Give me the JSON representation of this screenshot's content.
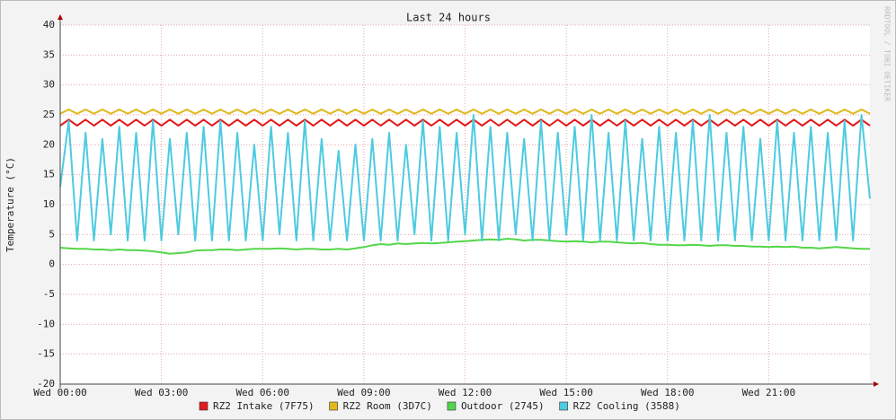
{
  "chart_data": {
    "type": "line",
    "title": "Last 24 hours",
    "y_label": "Temperature (°C)",
    "watermark": "RRDTOOL / TOBI OETIKER",
    "xlim": [
      0,
      24
    ],
    "ylim": [
      -20,
      40
    ],
    "yticks": [
      -20,
      -15,
      -10,
      -5,
      0,
      5,
      10,
      15,
      20,
      25,
      30,
      35,
      40
    ],
    "xticks": [
      {
        "value": 0,
        "label": "Wed 00:00"
      },
      {
        "value": 3,
        "label": "Wed 03:00"
      },
      {
        "value": 6,
        "label": "Wed 06:00"
      },
      {
        "value": 9,
        "label": "Wed 09:00"
      },
      {
        "value": 12,
        "label": "Wed 12:00"
      },
      {
        "value": 15,
        "label": "Wed 15:00"
      },
      {
        "value": 18,
        "label": "Wed 18:00"
      },
      {
        "value": 21,
        "label": "Wed 21:00"
      }
    ],
    "grid": true,
    "x": [
      0,
      0.25,
      0.5,
      0.75,
      1,
      1.25,
      1.5,
      1.75,
      2,
      2.25,
      2.5,
      2.75,
      3,
      3.25,
      3.5,
      3.75,
      4,
      4.25,
      4.5,
      4.75,
      5,
      5.25,
      5.5,
      5.75,
      6,
      6.25,
      6.5,
      6.75,
      7,
      7.25,
      7.5,
      7.75,
      8,
      8.25,
      8.5,
      8.75,
      9,
      9.25,
      9.5,
      9.75,
      10,
      10.25,
      10.5,
      10.75,
      11,
      11.25,
      11.5,
      11.75,
      12,
      12.25,
      12.5,
      12.75,
      13,
      13.25,
      13.5,
      13.75,
      14,
      14.25,
      14.5,
      14.75,
      15,
      15.25,
      15.5,
      15.75,
      16,
      16.25,
      16.5,
      16.75,
      17,
      17.25,
      17.5,
      17.75,
      18,
      18.25,
      18.5,
      18.75,
      19,
      19.25,
      19.5,
      19.75,
      20,
      20.25,
      20.5,
      20.75,
      21,
      21.25,
      21.5,
      21.75,
      22,
      22.25,
      22.5,
      22.75,
      23,
      23.25,
      23.5,
      23.75,
      24
    ],
    "series": [
      {
        "name": "RZ2 Intake (7F75)",
        "color": "#e31a1c",
        "values": [
          23.2,
          24.2,
          23.2,
          24.2,
          23.2,
          24.2,
          23.2,
          24.2,
          23.2,
          24.2,
          23.2,
          24.2,
          23.2,
          24.2,
          23.2,
          24.2,
          23.2,
          24.2,
          23.2,
          24.2,
          23.2,
          24.2,
          23.2,
          24.2,
          23.2,
          24.2,
          23.2,
          24.2,
          23.2,
          24.2,
          23.2,
          24.2,
          23.2,
          24.2,
          23.2,
          24.2,
          23.2,
          24.2,
          23.2,
          24.2,
          23.2,
          24.2,
          23.2,
          24.2,
          23.2,
          24.2,
          23.2,
          24.2,
          23.2,
          24.2,
          23.2,
          24.2,
          23.2,
          24.2,
          23.2,
          24.2,
          23.2,
          24.2,
          23.2,
          24.2,
          23.2,
          24.2,
          23.2,
          24.2,
          23.2,
          24.2,
          23.2,
          24.2,
          23.2,
          24.2,
          23.2,
          24.2,
          23.2,
          24.2,
          23.2,
          24.2,
          23.2,
          24.2,
          23.2,
          24.2,
          23.2,
          24.2,
          23.2,
          24.2,
          23.2,
          24.2,
          23.2,
          24.2,
          23.2,
          24.2,
          23.2,
          24.2,
          23.2,
          24.2,
          23.2,
          24.2,
          23.2
        ]
      },
      {
        "name": "RZ2 Room (3D7C)",
        "color": "#e0b81c",
        "values": [
          25.2,
          25.9,
          25.2,
          25.9,
          25.2,
          25.9,
          25.2,
          25.9,
          25.2,
          25.9,
          25.2,
          25.9,
          25.2,
          25.9,
          25.2,
          25.9,
          25.2,
          25.9,
          25.2,
          25.9,
          25.2,
          25.9,
          25.2,
          25.9,
          25.2,
          25.9,
          25.2,
          25.9,
          25.2,
          25.9,
          25.2,
          25.9,
          25.2,
          25.9,
          25.2,
          25.9,
          25.2,
          25.9,
          25.2,
          25.9,
          25.2,
          25.9,
          25.2,
          25.9,
          25.2,
          25.9,
          25.2,
          25.9,
          25.2,
          25.9,
          25.2,
          25.9,
          25.2,
          25.9,
          25.2,
          25.9,
          25.2,
          25.9,
          25.2,
          25.9,
          25.2,
          25.9,
          25.2,
          25.9,
          25.2,
          25.9,
          25.2,
          25.9,
          25.2,
          25.9,
          25.2,
          25.9,
          25.2,
          25.9,
          25.2,
          25.9,
          25.2,
          25.9,
          25.2,
          25.9,
          25.2,
          25.9,
          25.2,
          25.9,
          25.2,
          25.9,
          25.2,
          25.9,
          25.2,
          25.9,
          25.2,
          25.9,
          25.2,
          25.9,
          25.2,
          25.9,
          25.2
        ]
      },
      {
        "name": "Outdoor (2745)",
        "color": "#54d64a",
        "values": [
          2.8,
          2.7,
          2.6,
          2.6,
          2.5,
          2.5,
          2.4,
          2.5,
          2.4,
          2.4,
          2.3,
          2.2,
          2.0,
          1.8,
          1.9,
          2.0,
          2.3,
          2.4,
          2.4,
          2.5,
          2.5,
          2.4,
          2.5,
          2.6,
          2.6,
          2.6,
          2.7,
          2.6,
          2.5,
          2.6,
          2.6,
          2.5,
          2.5,
          2.6,
          2.5,
          2.7,
          2.9,
          3.2,
          3.4,
          3.3,
          3.5,
          3.4,
          3.5,
          3.6,
          3.5,
          3.6,
          3.7,
          3.8,
          3.9,
          4.0,
          4.1,
          4.2,
          4.1,
          4.3,
          4.2,
          4.0,
          4.1,
          4.1,
          4.0,
          3.9,
          3.8,
          3.9,
          3.8,
          3.7,
          3.8,
          3.8,
          3.7,
          3.6,
          3.5,
          3.6,
          3.4,
          3.3,
          3.3,
          3.2,
          3.2,
          3.3,
          3.2,
          3.1,
          3.2,
          3.2,
          3.1,
          3.1,
          3.0,
          3.0,
          2.9,
          3.0,
          2.9,
          3.0,
          2.8,
          2.8,
          2.7,
          2.8,
          2.9,
          2.8,
          2.7,
          2.6,
          2.6
        ]
      },
      {
        "name": "RZ2 Cooling (3588)",
        "color": "#4dcbe0",
        "values": [
          13,
          24,
          4,
          22,
          4,
          21,
          5,
          23,
          4,
          22,
          4,
          24,
          4,
          21,
          5,
          22,
          4,
          23,
          4,
          24,
          4,
          22,
          4,
          20,
          4,
          23,
          5,
          22,
          4,
          24,
          4,
          21,
          4,
          19,
          4,
          20,
          4,
          21,
          4,
          22,
          4,
          20,
          5,
          24,
          4,
          23,
          4,
          22,
          5,
          25,
          4,
          23,
          4,
          22,
          5,
          21,
          4,
          24,
          4,
          22,
          5,
          23,
          4,
          25,
          4,
          22,
          4,
          24,
          4,
          21,
          4,
          23,
          4,
          22,
          4,
          24,
          4,
          25,
          4,
          22,
          4,
          23,
          4,
          21,
          4,
          24,
          4,
          22,
          4,
          23,
          4,
          22,
          4,
          24,
          4,
          25,
          11
        ]
      }
    ]
  }
}
